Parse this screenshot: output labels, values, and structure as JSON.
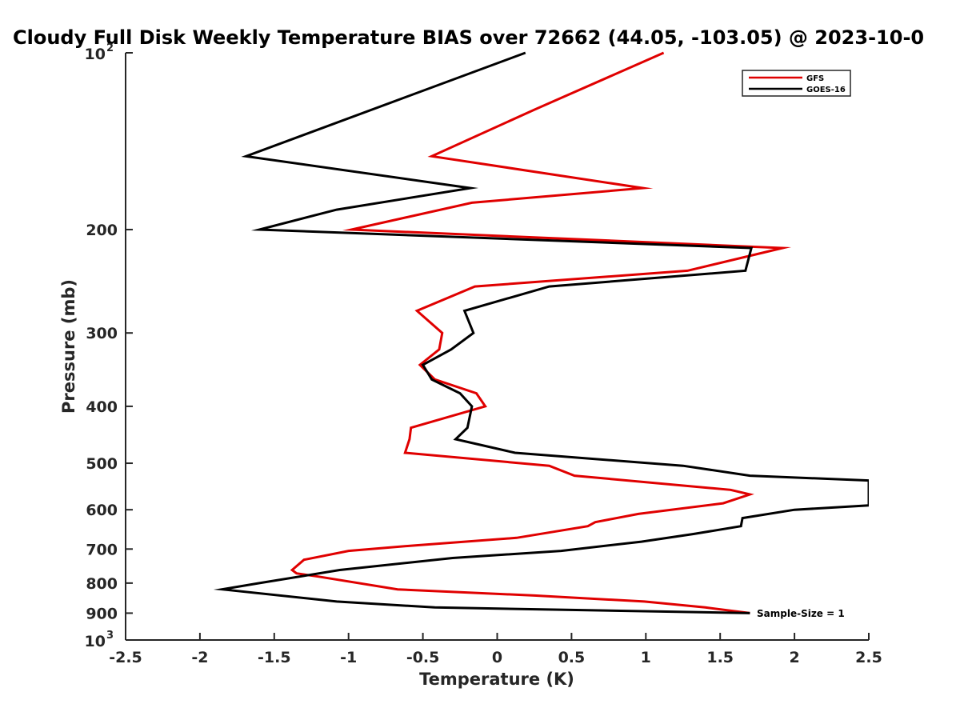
{
  "chart_data": {
    "type": "line",
    "title": "Cloudy Full Disk Weekly Temperature BIAS over 72662 (44.05, -103.05) @ 2023-10-0",
    "xlabel": "Temperature (K)",
    "ylabel": "Pressure (mb)",
    "xlim": [
      -2.5,
      2.5
    ],
    "ylim": [
      100,
      1000
    ],
    "y_scale": "log",
    "y_reversed": true,
    "grid": false,
    "legend_position": "top-right",
    "x_ticks": [
      "-2.5",
      "-2",
      "-1.5",
      "-1",
      "-0.5",
      "0",
      "0.5",
      "1",
      "1.5",
      "2",
      "2.5"
    ],
    "y_ticks": [
      {
        "value": 100,
        "base": "10",
        "exp": "2"
      },
      {
        "value": 200,
        "label": "200"
      },
      {
        "value": 300,
        "label": "300"
      },
      {
        "value": 400,
        "label": "400"
      },
      {
        "value": 500,
        "label": "500"
      },
      {
        "value": 600,
        "label": "600"
      },
      {
        "value": 700,
        "label": "700"
      },
      {
        "value": 800,
        "label": "800"
      },
      {
        "value": 900,
        "label": "900"
      },
      {
        "value": 1000,
        "base": "10",
        "exp": "3"
      }
    ],
    "annotation": "Sample-Size = 1",
    "series": [
      {
        "name": "GFS",
        "color": "#e00000",
        "points": [
          [
            1.12,
            100
          ],
          [
            0.25,
            125
          ],
          [
            -0.44,
            150
          ],
          [
            0.98,
            170
          ],
          [
            -0.17,
            180
          ],
          [
            -0.98,
            200
          ],
          [
            1.92,
            215
          ],
          [
            1.28,
            235
          ],
          [
            -0.15,
            250
          ],
          [
            -0.54,
            275
          ],
          [
            -0.37,
            300
          ],
          [
            -0.39,
            320
          ],
          [
            -0.52,
            340
          ],
          [
            -0.42,
            360
          ],
          [
            -0.14,
            380
          ],
          [
            -0.08,
            400
          ],
          [
            -0.58,
            435
          ],
          [
            -0.59,
            455
          ],
          [
            -0.62,
            480
          ],
          [
            0.35,
            505
          ],
          [
            0.52,
            525
          ],
          [
            1.57,
            555
          ],
          [
            1.7,
            565
          ],
          [
            1.52,
            585
          ],
          [
            0.95,
            610
          ],
          [
            0.66,
            630
          ],
          [
            0.61,
            640
          ],
          [
            0.13,
            670
          ],
          [
            -0.55,
            690
          ],
          [
            -1.0,
            705
          ],
          [
            -1.3,
            730
          ],
          [
            -1.38,
            760
          ],
          [
            -1.35,
            770
          ],
          [
            -1.2,
            780
          ],
          [
            -0.67,
            820
          ],
          [
            0.25,
            840
          ],
          [
            0.99,
            860
          ],
          [
            1.4,
            880
          ],
          [
            1.7,
            900
          ]
        ]
      },
      {
        "name": "GOES-16",
        "color": "#000000",
        "points": [
          [
            0.19,
            100
          ],
          [
            -1.69,
            150
          ],
          [
            -0.18,
            170
          ],
          [
            -1.08,
            185
          ],
          [
            -1.6,
            200
          ],
          [
            1.71,
            215
          ],
          [
            1.67,
            235
          ],
          [
            0.35,
            250
          ],
          [
            -0.22,
            275
          ],
          [
            -0.16,
            300
          ],
          [
            -0.31,
            320
          ],
          [
            -0.5,
            340
          ],
          [
            -0.44,
            360
          ],
          [
            -0.25,
            380
          ],
          [
            -0.17,
            400
          ],
          [
            -0.2,
            435
          ],
          [
            -0.28,
            455
          ],
          [
            0.12,
            480
          ],
          [
            1.25,
            505
          ],
          [
            1.7,
            525
          ],
          [
            2.5,
            535
          ],
          [
            2.5,
            590
          ],
          [
            2.0,
            600
          ],
          [
            1.65,
            620
          ],
          [
            1.64,
            640
          ],
          [
            1.32,
            660
          ],
          [
            0.97,
            680
          ],
          [
            0.43,
            705
          ],
          [
            -0.3,
            725
          ],
          [
            -1.06,
            760
          ],
          [
            -1.6,
            800
          ],
          [
            -1.85,
            820
          ],
          [
            -1.08,
            860
          ],
          [
            -0.42,
            880
          ],
          [
            1.7,
            900
          ]
        ]
      }
    ]
  }
}
